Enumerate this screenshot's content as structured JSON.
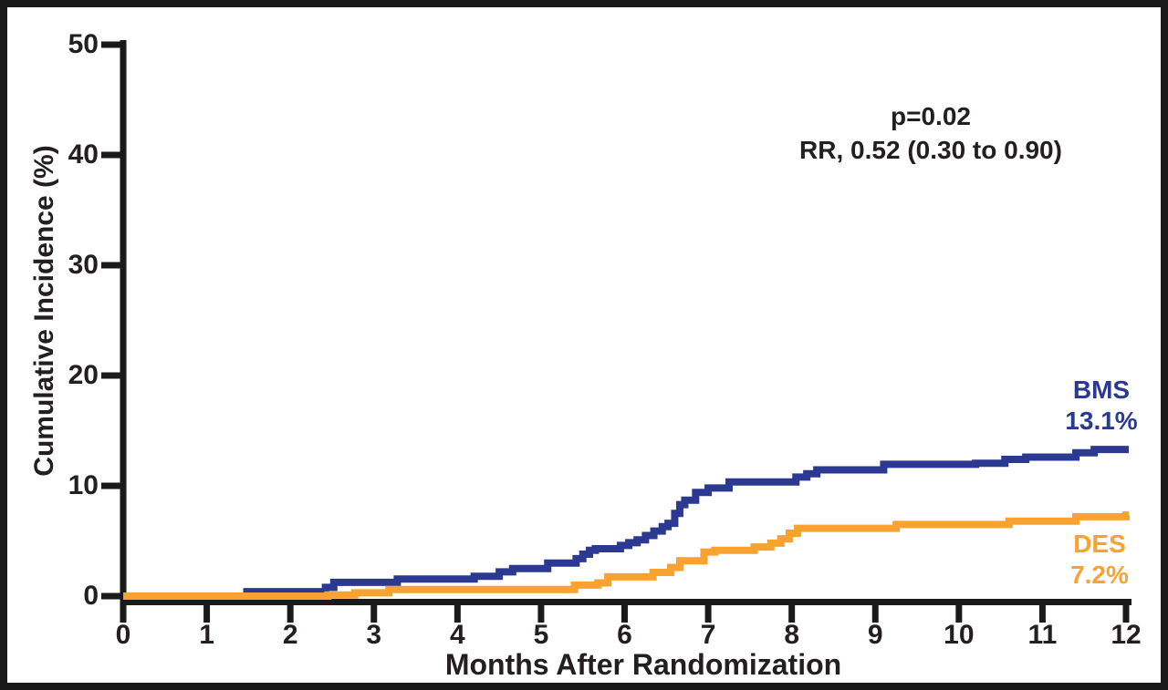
{
  "figure": {
    "background": "#ffffff",
    "frame_color": "#1a1a1a",
    "text_color": "#231f20"
  },
  "annotation": {
    "line1": "p=0.02",
    "line2": "RR, 0.52 (0.30 to 0.90)"
  },
  "curve_labels": {
    "bms_name": "BMS",
    "bms_value": "13.1%",
    "des_name": "DES",
    "des_value": "7.2%"
  },
  "chart_data": {
    "type": "line",
    "subtype": "step",
    "title": "",
    "xlabel": "Months After Randomization",
    "ylabel": "Cumulative Incidence (%)",
    "xlim": [
      0,
      12
    ],
    "ylim": [
      0,
      50
    ],
    "x_ticks": [
      0,
      1,
      2,
      3,
      4,
      5,
      6,
      7,
      8,
      9,
      10,
      11,
      12
    ],
    "y_ticks": [
      0,
      10,
      20,
      30,
      40,
      50
    ],
    "grid": false,
    "legend_position": "end-of-line labels",
    "annotations": [
      "p=0.02",
      "RR, 0.52 (0.30 to 0.90)"
    ],
    "axis_color": "#1a1a1a",
    "series": [
      {
        "name": "BMS",
        "color": "#2b3990",
        "final_value_label": "13.1%",
        "points": [
          [
            0,
            0
          ],
          [
            1.48,
            0.4
          ],
          [
            2.42,
            0.8
          ],
          [
            2.52,
            1.25
          ],
          [
            3.28,
            1.55
          ],
          [
            4.2,
            1.8
          ],
          [
            4.5,
            2.2
          ],
          [
            4.66,
            2.5
          ],
          [
            5.08,
            3.0
          ],
          [
            5.42,
            3.4
          ],
          [
            5.5,
            3.8
          ],
          [
            5.58,
            4.15
          ],
          [
            5.65,
            4.3
          ],
          [
            5.95,
            4.6
          ],
          [
            6.05,
            4.85
          ],
          [
            6.15,
            5.1
          ],
          [
            6.25,
            5.5
          ],
          [
            6.35,
            5.9
          ],
          [
            6.45,
            6.3
          ],
          [
            6.52,
            6.6
          ],
          [
            6.6,
            7.5
          ],
          [
            6.66,
            8.3
          ],
          [
            6.72,
            8.7
          ],
          [
            6.85,
            9.4
          ],
          [
            7.0,
            9.8
          ],
          [
            7.25,
            10.35
          ],
          [
            8.05,
            10.8
          ],
          [
            8.18,
            11.1
          ],
          [
            8.3,
            11.45
          ],
          [
            9.1,
            11.95
          ],
          [
            10.2,
            12.05
          ],
          [
            10.55,
            12.4
          ],
          [
            10.8,
            12.6
          ],
          [
            11.4,
            13.0
          ],
          [
            11.62,
            13.3
          ],
          [
            12,
            13.3
          ]
        ]
      },
      {
        "name": "DES",
        "color": "#f7a231",
        "final_value_label": "7.2%",
        "points": [
          [
            0,
            0
          ],
          [
            2.45,
            0.1
          ],
          [
            2.77,
            0.3
          ],
          [
            3.18,
            0.6
          ],
          [
            5.4,
            1.0
          ],
          [
            5.68,
            1.2
          ],
          [
            5.8,
            1.75
          ],
          [
            6.34,
            2.15
          ],
          [
            6.55,
            2.6
          ],
          [
            6.66,
            3.2
          ],
          [
            6.95,
            4.0
          ],
          [
            7.08,
            4.15
          ],
          [
            7.55,
            4.45
          ],
          [
            7.75,
            4.8
          ],
          [
            7.87,
            5.2
          ],
          [
            7.97,
            5.7
          ],
          [
            8.07,
            6.15
          ],
          [
            9.25,
            6.5
          ],
          [
            10.6,
            6.8
          ],
          [
            11.4,
            7.2
          ],
          [
            12,
            7.35
          ]
        ]
      }
    ]
  }
}
